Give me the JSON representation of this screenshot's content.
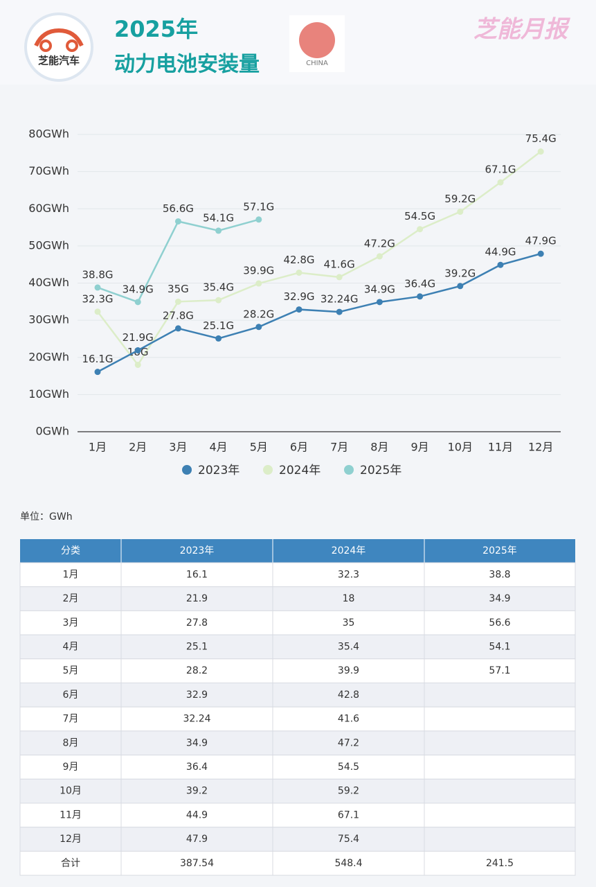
{
  "header": {
    "logo": "芝能汽车",
    "title": "2025年",
    "subtitle": "动力电池安装量",
    "country": "CHINA",
    "brand": "芝能月报"
  },
  "chart_data": {
    "type": "line",
    "categories": [
      "1月",
      "2月",
      "3月",
      "4月",
      "5月",
      "6月",
      "7月",
      "8月",
      "9月",
      "10月",
      "11月",
      "12月"
    ],
    "series": [
      {
        "name": "2023年",
        "color": "#3d80b3",
        "values": [
          16.1,
          21.9,
          27.8,
          25.1,
          28.2,
          32.9,
          32.24,
          34.9,
          36.4,
          39.2,
          44.9,
          47.9
        ],
        "value_labels": [
          "16.1G",
          "21.9G",
          "27.8G",
          "25.1G",
          "28.2G",
          "32.9G",
          "32.24G",
          "34.9G",
          "36.4G",
          "39.2G",
          "44.9G",
          "47.9G"
        ]
      },
      {
        "name": "2024年",
        "color": "#dcedc8",
        "values": [
          32.3,
          18,
          35,
          35.4,
          39.9,
          42.8,
          41.6,
          47.2,
          54.5,
          59.2,
          67.1,
          75.4
        ],
        "value_labels": [
          "32.3G",
          "18G",
          "35G",
          "35.4G",
          "39.9G",
          "42.8G",
          "41.6G",
          "47.2G",
          "54.5G",
          "59.2G",
          "67.1G",
          "75.4G"
        ]
      },
      {
        "name": "2025年",
        "color": "#8fd0d0",
        "values": [
          38.8,
          34.9,
          56.6,
          54.1,
          57.1,
          null,
          null,
          null,
          null,
          null,
          null,
          null
        ],
        "value_labels": [
          "38.8G",
          "34.9G",
          "56.6G",
          "54.1G",
          "57.1G",
          null,
          null,
          null,
          null,
          null,
          null,
          null
        ]
      }
    ],
    "ylim": [
      0,
      80
    ],
    "yticks": [
      {
        "value": 0,
        "label": "0GWh"
      },
      {
        "value": 10,
        "label": "10GWh"
      },
      {
        "value": 20,
        "label": "20GWh"
      },
      {
        "value": 30,
        "label": "30GWh"
      },
      {
        "value": 40,
        "label": "40GWh"
      },
      {
        "value": 50,
        "label": "50GWh"
      },
      {
        "value": 60,
        "label": "60GWh"
      },
      {
        "value": 70,
        "label": "70GWh"
      },
      {
        "value": 80,
        "label": "80GWh"
      }
    ],
    "grid": true,
    "legend": "bottom"
  },
  "unit": "单位：GWh",
  "table": {
    "header": [
      "分类",
      "2023年",
      "2024年",
      "2025年"
    ],
    "rows": [
      [
        "1月",
        16.1,
        32.3,
        38.8
      ],
      [
        "2月",
        21.9,
        18,
        34.9
      ],
      [
        "3月",
        27.8,
        35,
        56.6
      ],
      [
        "4月",
        25.1,
        35.4,
        54.1
      ],
      [
        "5月",
        28.2,
        39.9,
        57.1
      ],
      [
        "6月",
        32.9,
        42.8,
        null
      ],
      [
        "7月",
        32.24,
        41.6,
        null
      ],
      [
        "8月",
        34.9,
        47.2,
        null
      ],
      [
        "9月",
        36.4,
        54.5,
        null
      ],
      [
        "10月",
        39.2,
        59.2,
        null
      ],
      [
        "11月",
        44.9,
        67.1,
        null
      ],
      [
        "12月",
        47.9,
        75.4,
        null
      ],
      [
        "合计",
        387.54,
        548.4,
        241.5
      ]
    ]
  }
}
